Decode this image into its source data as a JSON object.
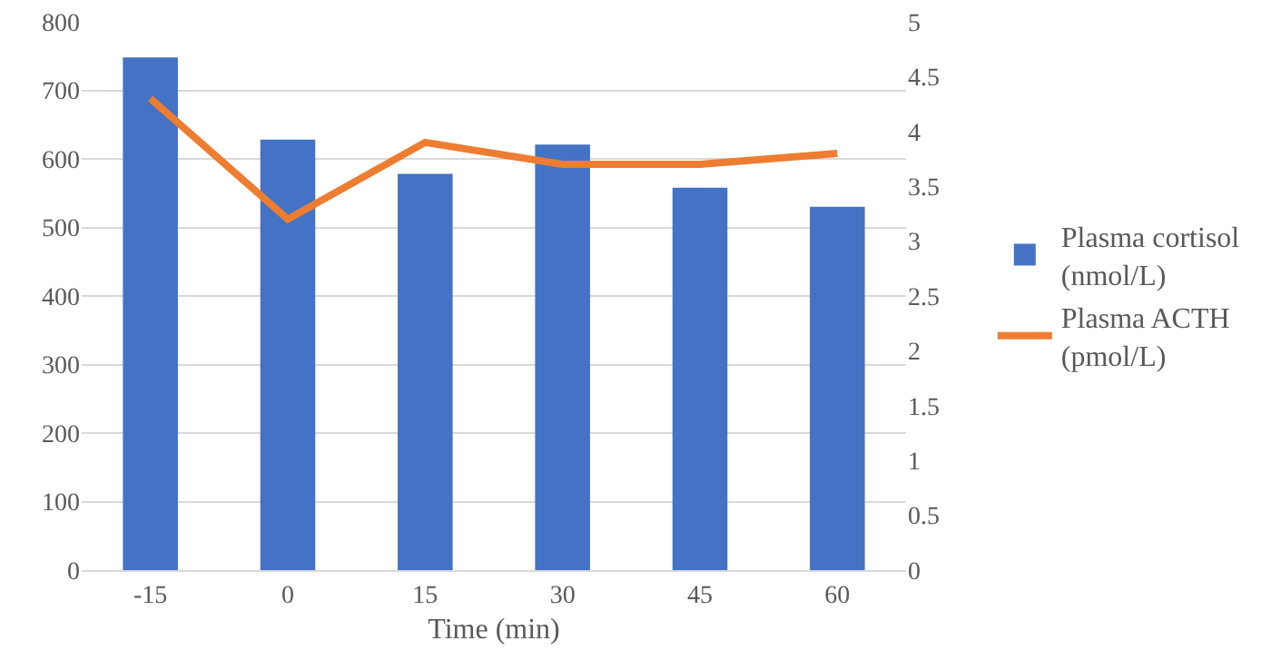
{
  "chart_data": {
    "type": "bar",
    "xlabel": "Time (min)",
    "categories": [
      "-15",
      "0",
      "15",
      "30",
      "45",
      "60"
    ],
    "series": [
      {
        "name": "Plasma cortisol (nmol/L)",
        "color": "#4472c4",
        "values": [
          748,
          628,
          578,
          621,
          558,
          530
        ]
      },
      {
        "name": "Plasma ACTH (pmol/L)",
        "type": "line",
        "axis": "y2",
        "color": "#ed7d31",
        "values": [
          4.3,
          3.2,
          3.9,
          3.7,
          3.7,
          3.8
        ]
      }
    ],
    "ylim": [
      0,
      800
    ],
    "yticks": [
      0,
      100,
      200,
      300,
      400,
      500,
      600,
      700,
      800
    ],
    "y2lim": [
      0,
      5
    ],
    "y2ticks": [
      0,
      0.5,
      1,
      1.5,
      2,
      2.5,
      3,
      3.5,
      4,
      4.5,
      5
    ],
    "grid": "y",
    "legend": "right",
    "marker": "none",
    "line_style": "solid"
  }
}
